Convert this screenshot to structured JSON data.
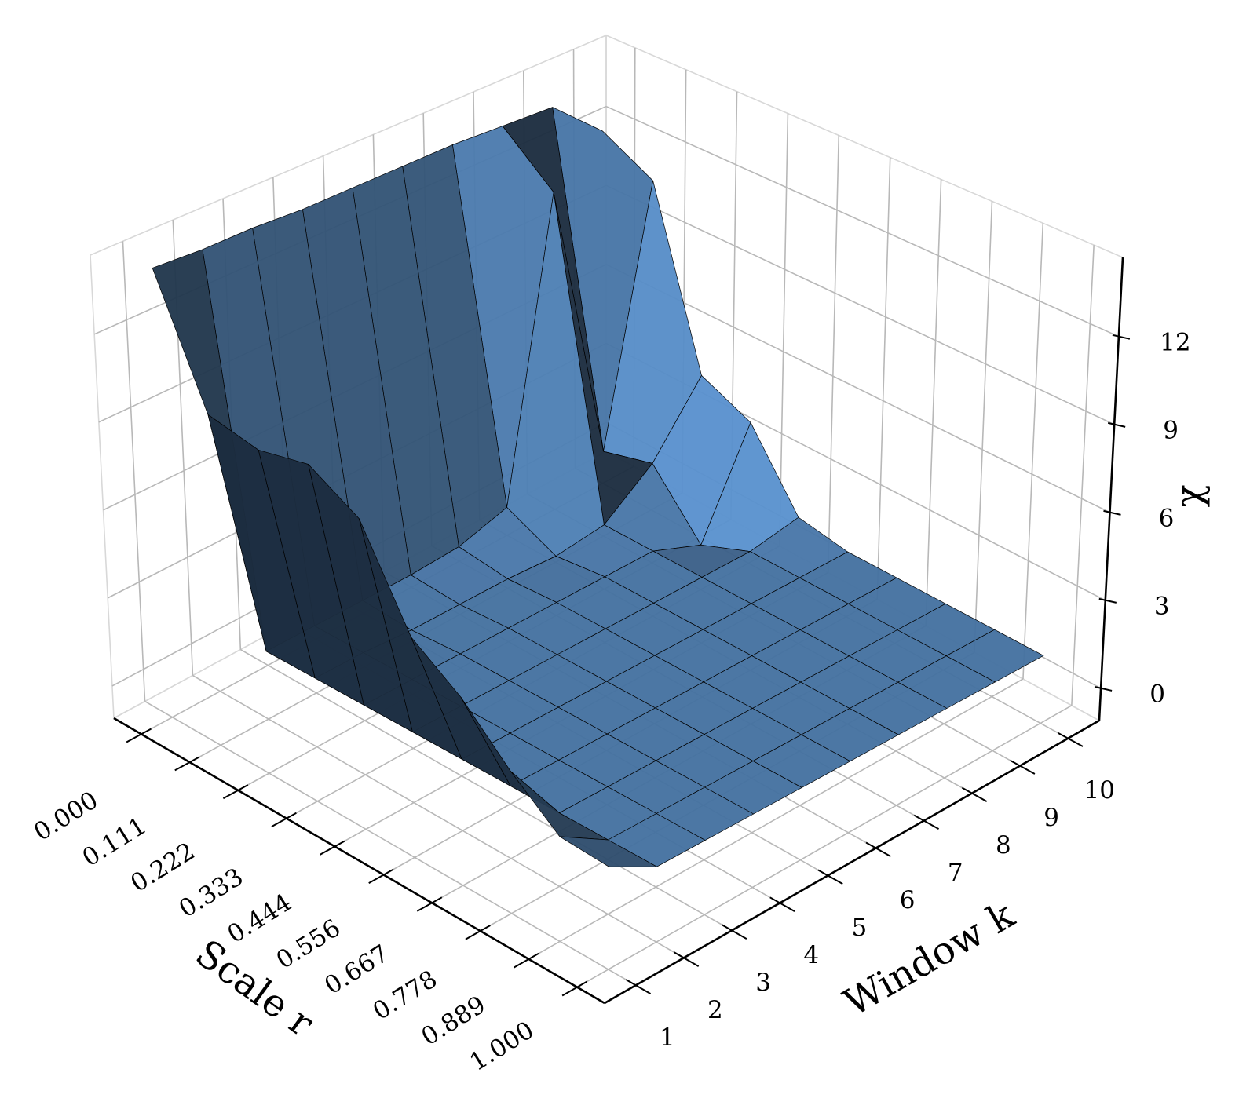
{
  "chart_data": {
    "type": "surface",
    "x_label": "Scale r",
    "y_label": "Window k",
    "z_label": "χ",
    "color": "#5c96d4",
    "x": [
      0,
      0.111,
      0.222,
      0.333,
      0.444,
      0.556,
      0.667,
      0.778,
      0.889,
      1
    ],
    "y": [
      1,
      2,
      3,
      4,
      5,
      6,
      7,
      8,
      9,
      10
    ],
    "z": [
      [
        14.2,
        14.1,
        14.1,
        14.0,
        14.0,
        14.0,
        14.0,
        13.9,
        13.8,
        12.1
      ],
      [
        10.0,
        1.2,
        1.2,
        1.2,
        1.2,
        1.3,
        1.8,
        12.3,
        2.0,
        11.1
      ],
      [
        9.6,
        1.2,
        1.2,
        1.1,
        1.1,
        1.1,
        1.0,
        1.2,
        2.5,
        4.8
      ],
      [
        9.9,
        1.2,
        1.2,
        1.2,
        1.2,
        1.2,
        1.2,
        1.2,
        0.5,
        4.0
      ],
      [
        8.9,
        1.2,
        1.2,
        1.2,
        1.2,
        1.2,
        1.2,
        1.2,
        1.2,
        1.5
      ],
      [
        5.9,
        1.2,
        1.2,
        1.2,
        1.2,
        1.2,
        1.2,
        1.2,
        1.2,
        1.2
      ],
      [
        4.8,
        1.2,
        1.2,
        1.2,
        1.2,
        1.2,
        1.2,
        1.2,
        1.2,
        1.2
      ],
      [
        3.3,
        1.2,
        1.2,
        1.2,
        1.2,
        1.2,
        1.2,
        1.2,
        1.2,
        1.2
      ],
      [
        2.1,
        1.2,
        1.2,
        1.2,
        1.2,
        1.2,
        1.2,
        1.2,
        1.2,
        1.2
      ],
      [
        2.0,
        1.2,
        1.2,
        1.2,
        1.2,
        1.2,
        1.2,
        1.2,
        1.2,
        1.2
      ]
    ],
    "xlim": [
      -0.063,
      1.063
    ],
    "ylim": [
      0.35,
      10.65
    ],
    "zlim": [
      -1.1,
      14.7
    ],
    "xticks": [
      {
        "value": 0,
        "label": "0.000"
      },
      0.111,
      0.222,
      0.333,
      0.444,
      0.556,
      0.667,
      0.778,
      0.889,
      {
        "value": 1,
        "label": "1.000"
      }
    ],
    "yticks": [
      1,
      2,
      3,
      4,
      5,
      6,
      7,
      8,
      9,
      10
    ],
    "zticks": [
      0,
      3,
      6,
      9,
      12
    ],
    "grid": true
  }
}
